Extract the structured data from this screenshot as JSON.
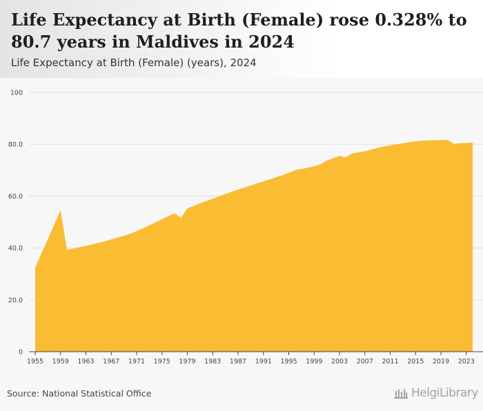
{
  "header": {
    "title": "Life Expectancy at Birth (Female) rose 0.328% to 80.7 years in Maldives in 2024",
    "subtitle": "Life Expectancy at Birth (Female) (years), 2024"
  },
  "footer": {
    "source": "Source: National Statistical Office",
    "logo_text": "HelgiLibrary"
  },
  "colors": {
    "fill": "#f9bc33",
    "grid": "#e2e2e2",
    "axis": "#444444"
  },
  "chart_data": {
    "type": "area",
    "title": "Life Expectancy at Birth (Female) rose 0.328% to 80.7 years in Maldives in 2024",
    "subtitle": "Life Expectancy at Birth (Female) (years), 2024",
    "xlabel": "",
    "ylabel": "",
    "ylim": [
      0,
      100
    ],
    "xlim": [
      1955,
      2024
    ],
    "y_ticks": [
      0,
      20,
      40,
      60,
      80,
      100
    ],
    "y_tick_labels": [
      "0",
      "20.0",
      "40.0",
      "60.0",
      "80.0",
      "100"
    ],
    "x_ticks": [
      1955,
      1959,
      1963,
      1967,
      1971,
      1975,
      1979,
      1983,
      1987,
      1991,
      1995,
      1999,
      2003,
      2007,
      2011,
      2015,
      2019,
      2023
    ],
    "grid": true,
    "legend": "none",
    "series": [
      {
        "name": "Life Expectancy at Birth (Female)",
        "x": [
          1955,
          1956,
          1957,
          1958,
          1959,
          1960,
          1961,
          1962,
          1963,
          1964,
          1965,
          1966,
          1967,
          1968,
          1969,
          1970,
          1971,
          1972,
          1973,
          1974,
          1975,
          1976,
          1977,
          1978,
          1979,
          1980,
          1981,
          1982,
          1983,
          1984,
          1985,
          1986,
          1987,
          1988,
          1989,
          1990,
          1991,
          1992,
          1993,
          1994,
          1995,
          1996,
          1997,
          1998,
          1999,
          2000,
          2001,
          2002,
          2003,
          2004,
          2005,
          2006,
          2007,
          2008,
          2009,
          2010,
          2011,
          2012,
          2013,
          2014,
          2015,
          2016,
          2017,
          2018,
          2019,
          2020,
          2021,
          2022,
          2023,
          2024
        ],
        "values": [
          32.5,
          38.0,
          43.5,
          49.0,
          54.7,
          39.3,
          39.8,
          40.3,
          40.8,
          41.4,
          42.0,
          42.6,
          43.3,
          44.0,
          44.7,
          45.5,
          46.5,
          47.6,
          48.7,
          49.9,
          51.1,
          52.3,
          53.3,
          51.7,
          55.3,
          56.2,
          57.2,
          58.1,
          59.0,
          59.9,
          60.8,
          61.7,
          62.5,
          63.3,
          64.1,
          64.9,
          65.7,
          66.5,
          67.3,
          68.1,
          69.0,
          70.0,
          70.5,
          70.9,
          71.5,
          72.3,
          73.7,
          74.6,
          75.5,
          74.9,
          76.5,
          76.9,
          77.3,
          78.0,
          78.6,
          79.2,
          79.6,
          80.0,
          80.4,
          80.8,
          81.1,
          81.3,
          81.5,
          81.5,
          81.6,
          81.7,
          80.2,
          80.4,
          80.5,
          80.7
        ]
      }
    ]
  }
}
